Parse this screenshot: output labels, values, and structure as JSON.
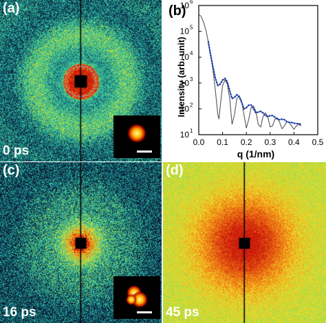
{
  "panels": [
    {
      "id": "a",
      "label": "(a)",
      "time": "0 ps",
      "style": "rings"
    },
    {
      "id": "c",
      "label": "(c)",
      "time": "16 ps",
      "style": "weak"
    },
    {
      "id": "d",
      "label": "(d)",
      "time": "45 ps",
      "style": "diffuse"
    }
  ],
  "insets": {
    "a_style": "round",
    "c_style": "split"
  },
  "chart_label": "(b)",
  "chart_data": {
    "type": "line",
    "xlabel": "q (1/nm)",
    "ylabel": "Intensity (arb. unit)",
    "xlim": [
      0.0,
      0.5
    ],
    "ylim": [
      10,
      1000000
    ],
    "yscale": "log",
    "xticks": [
      "0.0",
      "0.1",
      "0.2",
      "0.3",
      "0.4",
      "0.5"
    ],
    "yticks": [
      "10",
      "10",
      "10",
      "10",
      "10",
      "10"
    ],
    "ytick_exponents": [
      "1",
      "2",
      "3",
      "4",
      "5",
      "6"
    ],
    "series": [
      {
        "name": "",
        "style": "solid",
        "color": "#555555",
        "x": [
          0.0,
          0.01,
          0.02,
          0.03,
          0.04,
          0.05,
          0.06,
          0.07,
          0.08,
          0.085,
          0.09,
          0.1,
          0.11,
          0.12,
          0.13,
          0.14,
          0.15,
          0.16,
          0.17,
          0.18,
          0.19,
          0.2,
          0.21,
          0.22,
          0.23,
          0.24,
          0.25,
          0.26,
          0.27,
          0.28,
          0.29,
          0.3,
          0.31,
          0.32,
          0.33,
          0.34,
          0.35,
          0.36,
          0.37,
          0.38,
          0.39,
          0.4,
          0.41,
          0.42,
          0.43
        ],
        "y": [
          450000,
          380000,
          230000,
          110000,
          40000,
          12000,
          3000,
          500,
          60,
          40,
          120,
          800,
          1300,
          900,
          250,
          25,
          60,
          250,
          320,
          200,
          60,
          18,
          40,
          110,
          130,
          80,
          25,
          20,
          50,
          70,
          50,
          20,
          22,
          40,
          45,
          30,
          17,
          22,
          32,
          30,
          22,
          16,
          22,
          25,
          22
        ]
      },
      {
        "name": "",
        "style": "dotted",
        "color": "#1f3fa8",
        "x": [
          0.0,
          0.01,
          0.02,
          0.03,
          0.04,
          0.05,
          0.06,
          0.07,
          0.08,
          0.09,
          0.1,
          0.11,
          0.12,
          0.13,
          0.14,
          0.15,
          0.16,
          0.17,
          0.18,
          0.19,
          0.2,
          0.21,
          0.22,
          0.23,
          0.24,
          0.25,
          0.26,
          0.27,
          0.28,
          0.29,
          0.3,
          0.31,
          0.32,
          0.33,
          0.34,
          0.35,
          0.36,
          0.37,
          0.38,
          0.39,
          0.4,
          0.41,
          0.42,
          0.43
        ],
        "y": [
          null,
          null,
          null,
          null,
          40000,
          12000,
          4000,
          1500,
          800,
          900,
          1300,
          1500,
          1100,
          500,
          250,
          280,
          350,
          300,
          180,
          100,
          110,
          140,
          140,
          100,
          70,
          75,
          80,
          70,
          55,
          50,
          55,
          55,
          48,
          40,
          38,
          40,
          38,
          32,
          30,
          30,
          28,
          27,
          27,
          25
        ]
      }
    ]
  }
}
